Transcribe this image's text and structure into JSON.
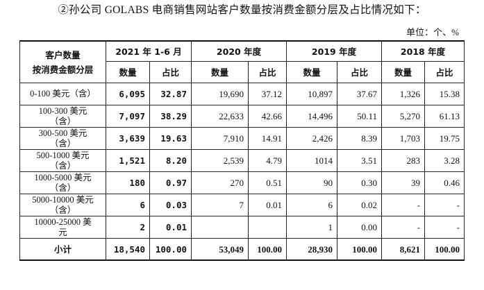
{
  "heading": "②孙公司 GOLABS 电商销售网站客户数量按消费金额分层及占比情况如下：",
  "unit": "单位：个、%",
  "table": {
    "corner": [
      "客户数量",
      "按消费金额分层"
    ],
    "periods": [
      "2021 年 1-6 月",
      "2020 年度",
      "2019 年度",
      "2018 年度"
    ],
    "subheaders": [
      "数量",
      "占比"
    ],
    "rows": [
      {
        "label": [
          "0-100 美元（含）"
        ],
        "cells": [
          "6,095",
          "32.87",
          "19,690",
          "37.12",
          "10,897",
          "37.67",
          "1,326",
          "15.38"
        ]
      },
      {
        "label": [
          "100-300 美元",
          "（含）"
        ],
        "cells": [
          "7,097",
          "38.29",
          "22,633",
          "42.66",
          "14,496",
          "50.11",
          "5,270",
          "61.13"
        ]
      },
      {
        "label": [
          "300-500 美元",
          "（含）"
        ],
        "cells": [
          "3,639",
          "19.63",
          "7,910",
          "14.91",
          "2,426",
          "8.39",
          "1,703",
          "19.75"
        ]
      },
      {
        "label": [
          "500-1000 美元",
          "（含）"
        ],
        "cells": [
          "1,521",
          "8.20",
          "2,539",
          "4.79",
          "1014",
          "3.51",
          "283",
          "3.28"
        ]
      },
      {
        "label": [
          "1000-5000 美元",
          "（含）"
        ],
        "cells": [
          "180",
          "0.97",
          "270",
          "0.51",
          "90",
          "0.30",
          "39",
          "0.46"
        ]
      },
      {
        "label": [
          "5000-10000 美元",
          "（含）"
        ],
        "cells": [
          "6",
          "0.03",
          "7",
          "0.01",
          "6",
          "0.02",
          "-",
          "-"
        ]
      },
      {
        "label": [
          "10000-25000 美",
          "元"
        ],
        "cells": [
          "2",
          "0.01",
          "",
          "",
          "1",
          "0.00",
          "-",
          "-"
        ]
      }
    ],
    "total": {
      "label": "小计",
      "cells": [
        "18,540",
        "100.00",
        "53,049",
        "100.00",
        "28,930",
        "100.00",
        "8,621",
        "100.00"
      ]
    }
  }
}
